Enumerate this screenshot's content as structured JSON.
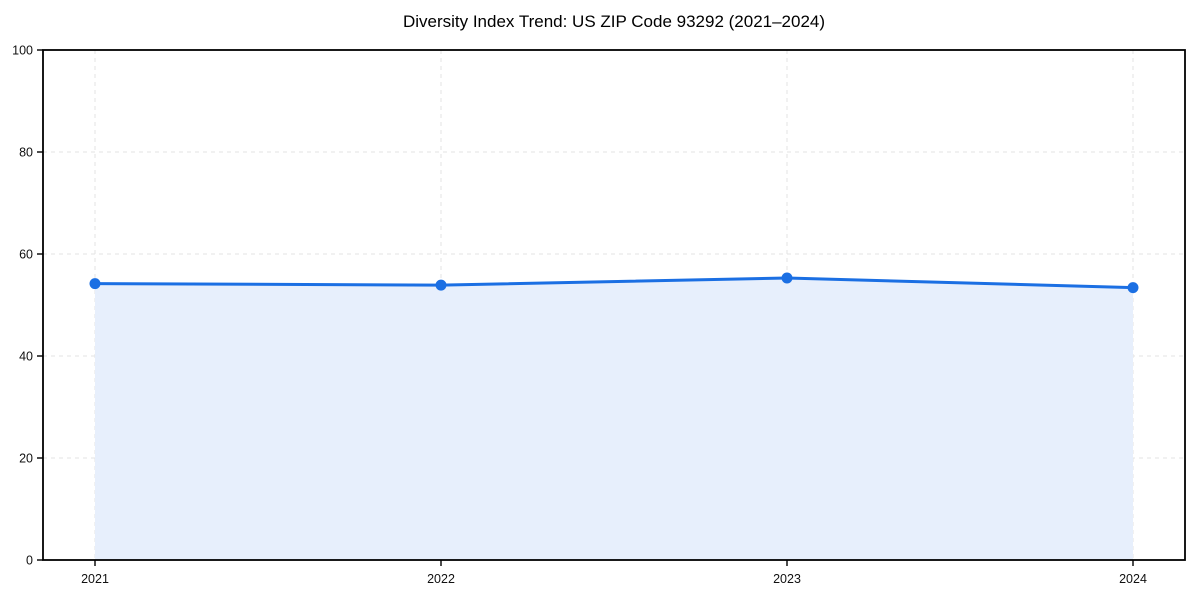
{
  "colors": {
    "line": "#1b6fe3",
    "fill": "#e7effc",
    "grid": "#e3e3e3",
    "frame": "#000000",
    "text": "#111111"
  },
  "chart_data": {
    "type": "area",
    "title": "Diversity Index Trend: US ZIP Code 93292 (2021–2024)",
    "xlabel": "",
    "ylabel": "",
    "categories": [
      "2021",
      "2022",
      "2023",
      "2024"
    ],
    "series": [
      {
        "name": "Diversity Index",
        "values": [
          54.2,
          53.9,
          55.3,
          53.4
        ]
      }
    ],
    "ylim": [
      0,
      100
    ],
    "yticks": [
      0,
      20,
      40,
      60,
      80,
      100
    ],
    "grid": true,
    "grid_style": "dashed",
    "legend": false,
    "marker": "circle",
    "fill_to_zero": true
  }
}
